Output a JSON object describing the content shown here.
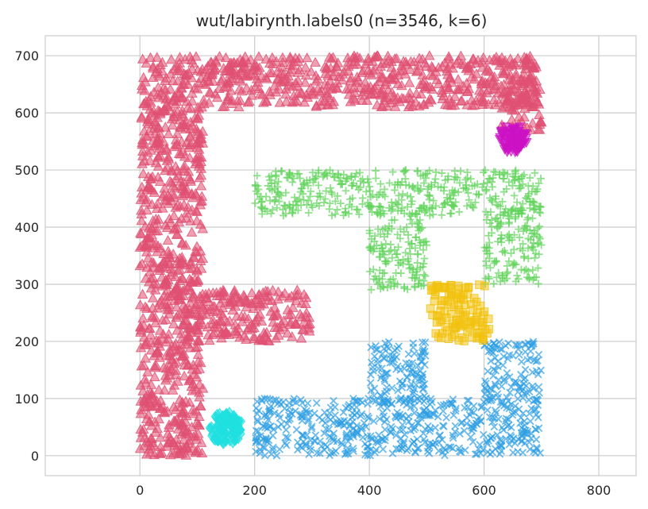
{
  "chart_data": {
    "type": "scatter",
    "title": "wut/labirynth.labels0 (n=3546, k=6)",
    "xlabel": "",
    "ylabel": "",
    "xlim": [
      -165,
      865
    ],
    "ylim": [
      -35,
      735
    ],
    "xticks": [
      0,
      200,
      400,
      600,
      800
    ],
    "yticks": [
      0,
      100,
      200,
      300,
      400,
      500,
      600,
      700
    ],
    "grid": true,
    "legend": "none",
    "series": [
      {
        "marker": "triangle-up",
        "color": "#e05072",
        "regions": [
          {
            "x": [
              0,
              110
            ],
            "y": [
              0,
              700
            ]
          },
          {
            "x": [
              110,
              700
            ],
            "y": [
              610,
              700
            ]
          },
          {
            "x": [
              630,
              700
            ],
            "y": [
              570,
              660
            ]
          },
          {
            "x": [
              110,
              300
            ],
            "y": [
              200,
              290
            ]
          }
        ]
      },
      {
        "marker": "plus",
        "color": "#5fd35a",
        "regions": [
          {
            "x": [
              200,
              700
            ],
            "y": [
              420,
              500
            ]
          },
          {
            "x": [
              400,
              500
            ],
            "y": [
              290,
              440
            ]
          },
          {
            "x": [
              600,
              700
            ],
            "y": [
              300,
              440
            ]
          }
        ]
      },
      {
        "marker": "x",
        "color": "#2e9ee3",
        "regions": [
          {
            "x": [
              200,
              700
            ],
            "y": [
              0,
              100
            ]
          },
          {
            "x": [
              400,
              500
            ],
            "y": [
              95,
              200
            ]
          },
          {
            "x": [
              600,
              700
            ],
            "y": [
              95,
              200
            ]
          }
        ]
      },
      {
        "marker": "square",
        "color": "#f2c10c",
        "regions": [
          {
            "x": [
              505,
              610
            ],
            "y": [
              200,
              300
            ]
          }
        ]
      },
      {
        "marker": "diamond",
        "color": "#1fe0e0",
        "regions": [
          {
            "cx": 150,
            "cy": 47,
            "r": 30
          }
        ]
      },
      {
        "marker": "triangle-down",
        "color": "#cc12c4",
        "regions": [
          {
            "cx": 650,
            "cy": 555,
            "r": 25
          }
        ]
      }
    ]
  }
}
